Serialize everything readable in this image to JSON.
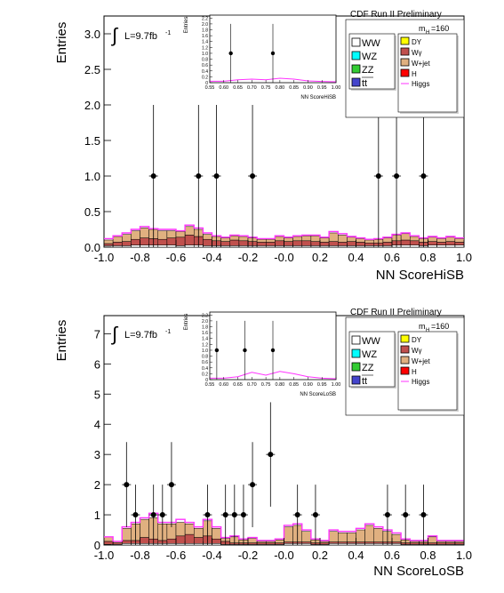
{
  "chart_data": [
    {
      "type": "bar",
      "xlabel": "NN ScoreHiSB",
      "ylabel": "Entries",
      "luminosity": "L=9.7fb",
      "lumi_sup": "-1",
      "header": "CDF Run II Preliminary",
      "mass_label": "m",
      "mass_sub": "H",
      "mass_value": "=160",
      "xlim": [
        -1.0,
        1.0
      ],
      "ylim": [
        0,
        3.25
      ],
      "xticks": [
        "-1.0",
        "-0.8",
        "-0.6",
        "-0.4",
        "-0.2",
        "-0.0",
        "0.2",
        "0.4",
        "0.6",
        "0.8",
        "1.0"
      ],
      "yticks": [
        "0.0",
        "0.5",
        "1.0",
        "1.5",
        "2.0",
        "2.5",
        "3.0"
      ],
      "ytick_values": [
        0,
        0.5,
        1.0,
        1.5,
        2.0,
        2.5,
        3.0
      ],
      "legend_left": [
        "WW",
        "WZ",
        "ZZ",
        "tt"
      ],
      "legend_right": [
        "DY",
        "Wγ",
        "W+jet",
        "H",
        "Higgs"
      ],
      "background_bins": {
        "low_edge": -1.0,
        "width": 0.05,
        "wjet": [
          0.05,
          0.08,
          0.1,
          0.12,
          0.14,
          0.13,
          0.12,
          0.1,
          0.08,
          0.12,
          0.1,
          0.07,
          0.06,
          0.05,
          0.06,
          0.06,
          0.05,
          0.04,
          0.04,
          0.06,
          0.05,
          0.06,
          0.07,
          0.08,
          0.06,
          0.12,
          0.1,
          0.06,
          0.05,
          0.04,
          0.05,
          0.06,
          0.08,
          0.09,
          0.06,
          0.05,
          0.06,
          0.05,
          0.06,
          0.05
        ],
        "wgamma": [
          0.03,
          0.05,
          0.06,
          0.08,
          0.1,
          0.09,
          0.08,
          0.1,
          0.12,
          0.14,
          0.12,
          0.09,
          0.07,
          0.06,
          0.08,
          0.07,
          0.06,
          0.05,
          0.05,
          0.07,
          0.06,
          0.07,
          0.07,
          0.06,
          0.05,
          0.06,
          0.05,
          0.06,
          0.05,
          0.04,
          0.04,
          0.05,
          0.06,
          0.07,
          0.06,
          0.05,
          0.05,
          0.04,
          0.05,
          0.04
        ],
        "ww": [
          0.02,
          0.02,
          0.02,
          0.03,
          0.03,
          0.03,
          0.03,
          0.03,
          0.02,
          0.03,
          0.03,
          0.02,
          0.02,
          0.02,
          0.02,
          0.02,
          0.02,
          0.02,
          0.02,
          0.02,
          0.02,
          0.02,
          0.02,
          0.02,
          0.02,
          0.02,
          0.02,
          0.02,
          0.02,
          0.02,
          0.02,
          0.02,
          0.03,
          0.03,
          0.03,
          0.02,
          0.03,
          0.03,
          0.03,
          0.03
        ],
        "higgs": [
          0.12,
          0.16,
          0.2,
          0.25,
          0.29,
          0.26,
          0.25,
          0.25,
          0.23,
          0.31,
          0.27,
          0.2,
          0.16,
          0.14,
          0.17,
          0.16,
          0.14,
          0.12,
          0.12,
          0.16,
          0.14,
          0.16,
          0.17,
          0.17,
          0.14,
          0.22,
          0.19,
          0.15,
          0.13,
          0.11,
          0.12,
          0.14,
          0.18,
          0.2,
          0.16,
          0.13,
          0.15,
          0.13,
          0.15,
          0.13
        ]
      },
      "points": [
        {
          "x": -0.725,
          "y": 1.0,
          "err": 1.0
        },
        {
          "x": -0.475,
          "y": 1.0,
          "err": 1.0
        },
        {
          "x": -0.375,
          "y": 1.0,
          "err": 1.0
        },
        {
          "x": -0.175,
          "y": 1.0,
          "err": 1.0
        },
        {
          "x": 0.525,
          "y": 1.0,
          "err": 1.0
        },
        {
          "x": 0.625,
          "y": 1.0,
          "err": 1.0
        },
        {
          "x": 0.775,
          "y": 1.0,
          "err": 1.0
        }
      ],
      "inset": {
        "xlabel": "NN ScoreHiSB",
        "ylabel": "Entries",
        "xlim": [
          0.55,
          1.0
        ],
        "ylim": [
          0,
          2.3
        ],
        "xticks": [
          "0.55",
          "0.60",
          "0.65",
          "0.70",
          "0.75",
          "0.80",
          "0.85",
          "0.90",
          "0.95",
          "1.00"
        ],
        "xtick_values": [
          0.55,
          0.6,
          0.65,
          0.7,
          0.75,
          0.8,
          0.85,
          0.9,
          0.95,
          1.0
        ],
        "yticks": [
          "0",
          "0.2",
          "0.4",
          "0.6",
          "0.8",
          "1.0",
          "1.2",
          "1.4",
          "1.6",
          "1.8",
          "2.0",
          "2.2"
        ],
        "ytick_values": [
          0,
          0.2,
          0.4,
          0.6,
          0.8,
          1.0,
          1.2,
          1.4,
          1.6,
          1.8,
          2.0,
          2.2
        ],
        "points": [
          {
            "x": 0.625,
            "y": 1.0,
            "err": 1.0
          },
          {
            "x": 0.775,
            "y": 1.0,
            "err": 1.0
          }
        ],
        "higgs_x": [
          0.55,
          0.6,
          0.65,
          0.7,
          0.75,
          0.8,
          0.85,
          0.9,
          0.95,
          1.0
        ],
        "higgs_y": [
          0.05,
          0.05,
          0.1,
          0.12,
          0.1,
          0.15,
          0.12,
          0.06,
          0.04,
          0.03
        ]
      }
    },
    {
      "type": "bar",
      "xlabel": "NN ScoreLoSB",
      "ylabel": "Entries",
      "luminosity": "L=9.7fb",
      "lumi_sup": "-1",
      "header": "CDF Run II Preliminary",
      "mass_label": "m",
      "mass_sub": "H",
      "mass_value": "=160",
      "xlim": [
        -1.0,
        1.0
      ],
      "ylim": [
        0,
        7.6
      ],
      "xticks": [
        "-1.0",
        "-0.8",
        "-0.6",
        "-0.4",
        "-0.2",
        "-0.0",
        "0.2",
        "0.4",
        "0.6",
        "0.8",
        "1.0"
      ],
      "yticks": [
        "0",
        "1",
        "2",
        "3",
        "4",
        "5",
        "6",
        "7"
      ],
      "ytick_values": [
        0,
        1,
        2,
        3,
        4,
        5,
        6,
        7
      ],
      "legend_left": [
        "WW",
        "WZ",
        "ZZ",
        "tt"
      ],
      "legend_right": [
        "DY",
        "Wγ",
        "W+jet",
        "H",
        "Higgs"
      ],
      "background_bins": {
        "low_edge": -1.0,
        "width": 0.05,
        "wjet": [
          0.15,
          0.05,
          0.4,
          0.55,
          0.6,
          0.7,
          0.55,
          0.5,
          0.45,
          0.35,
          0.3,
          0.5,
          0.35,
          0.1,
          0.2,
          0.1,
          0.15,
          0.05,
          0.05,
          0.1,
          0.5,
          0.55,
          0.35,
          0.1,
          0.05,
          0.35,
          0.3,
          0.3,
          0.4,
          0.55,
          0.45,
          0.35,
          0.25,
          0.1,
          0.05,
          0.05,
          0.2,
          0.05,
          0.05,
          0.05
        ],
        "wgamma": [
          0.1,
          0.05,
          0.1,
          0.1,
          0.2,
          0.15,
          0.1,
          0.15,
          0.25,
          0.3,
          0.2,
          0.25,
          0.15,
          0.1,
          0.05,
          0.05,
          0.05,
          0.05,
          0.05,
          0.05,
          0.05,
          0.05,
          0.05,
          0.05,
          0.05,
          0.05,
          0.05,
          0.05,
          0.05,
          0.05,
          0.05,
          0.05,
          0.05,
          0.05,
          0.05,
          0.05,
          0.05,
          0.05,
          0.05,
          0.05
        ],
        "ww": [
          0.02,
          0.02,
          0.05,
          0.05,
          0.05,
          0.05,
          0.05,
          0.05,
          0.05,
          0.05,
          0.05,
          0.05,
          0.05,
          0.02,
          0.02,
          0.02,
          0.02,
          0.02,
          0.02,
          0.02,
          0.05,
          0.05,
          0.05,
          0.02,
          0.02,
          0.05,
          0.05,
          0.05,
          0.05,
          0.05,
          0.05,
          0.05,
          0.05,
          0.02,
          0.02,
          0.02,
          0.02,
          0.02,
          0.02,
          0.02
        ],
        "higgs": [
          0.27,
          0.12,
          0.6,
          0.75,
          0.9,
          1.05,
          0.75,
          0.75,
          0.85,
          0.75,
          0.6,
          0.85,
          0.6,
          0.25,
          0.3,
          0.2,
          0.25,
          0.15,
          0.15,
          0.2,
          0.65,
          0.7,
          0.5,
          0.2,
          0.15,
          0.5,
          0.45,
          0.45,
          0.55,
          0.7,
          0.6,
          0.5,
          0.4,
          0.2,
          0.15,
          0.15,
          0.3,
          0.15,
          0.15,
          0.15
        ]
      },
      "points": [
        {
          "x": -0.875,
          "y": 2,
          "err": 1.41
        },
        {
          "x": -0.825,
          "y": 1,
          "err": 1.0
        },
        {
          "x": -0.725,
          "y": 1,
          "err": 1.0
        },
        {
          "x": -0.675,
          "y": 1,
          "err": 1.0
        },
        {
          "x": -0.625,
          "y": 2,
          "err": 1.41
        },
        {
          "x": -0.425,
          "y": 1,
          "err": 1.0
        },
        {
          "x": -0.325,
          "y": 1,
          "err": 1.0
        },
        {
          "x": -0.275,
          "y": 1,
          "err": 1.0
        },
        {
          "x": -0.225,
          "y": 1,
          "err": 1.0
        },
        {
          "x": -0.175,
          "y": 2,
          "err": 1.41
        },
        {
          "x": -0.075,
          "y": 3,
          "err": 1.73
        },
        {
          "x": 0.075,
          "y": 1,
          "err": 1.0
        },
        {
          "x": 0.175,
          "y": 1,
          "err": 1.0
        },
        {
          "x": 0.575,
          "y": 1,
          "err": 1.0
        },
        {
          "x": 0.675,
          "y": 1,
          "err": 1.0
        },
        {
          "x": 0.775,
          "y": 1,
          "err": 1.0
        }
      ],
      "inset": {
        "xlabel": "NN ScoreLoSB",
        "ylabel": "Entries",
        "xlim": [
          0.55,
          1.0
        ],
        "ylim": [
          0,
          2.3
        ],
        "xticks": [
          "0.55",
          "0.60",
          "0.65",
          "0.70",
          "0.75",
          "0.80",
          "0.85",
          "0.90",
          "0.95",
          "1.00"
        ],
        "xtick_values": [
          0.55,
          0.6,
          0.65,
          0.7,
          0.75,
          0.8,
          0.85,
          0.9,
          0.95,
          1.0
        ],
        "yticks": [
          "0",
          "0.2",
          "0.4",
          "0.6",
          "0.8",
          "1.0",
          "1.2",
          "1.4",
          "1.6",
          "1.8",
          "2.0",
          "2.2"
        ],
        "ytick_values": [
          0,
          0.2,
          0.4,
          0.6,
          0.8,
          1.0,
          1.2,
          1.4,
          1.6,
          1.8,
          2.0,
          2.2
        ],
        "points": [
          {
            "x": 0.575,
            "y": 1.0,
            "err": 1.0
          },
          {
            "x": 0.675,
            "y": 1.0,
            "err": 1.0
          },
          {
            "x": 0.775,
            "y": 1.0,
            "err": 1.0
          }
        ],
        "higgs_x": [
          0.55,
          0.6,
          0.65,
          0.7,
          0.75,
          0.8,
          0.85,
          0.9,
          0.95,
          1.0
        ],
        "higgs_y": [
          0.05,
          0.05,
          0.1,
          0.25,
          0.15,
          0.28,
          0.2,
          0.1,
          0.05,
          0.03
        ]
      }
    }
  ],
  "colors": {
    "ww": "#ffffff",
    "wz": "#00ffff",
    "zz": "#33cc33",
    "tt": "#4444cc",
    "dy": "#ffff00",
    "wgamma": "#c0504d",
    "wjet": "#e0b080",
    "h": "#ff0000",
    "higgs_line": "#ff33ff",
    "data": "#000000"
  }
}
